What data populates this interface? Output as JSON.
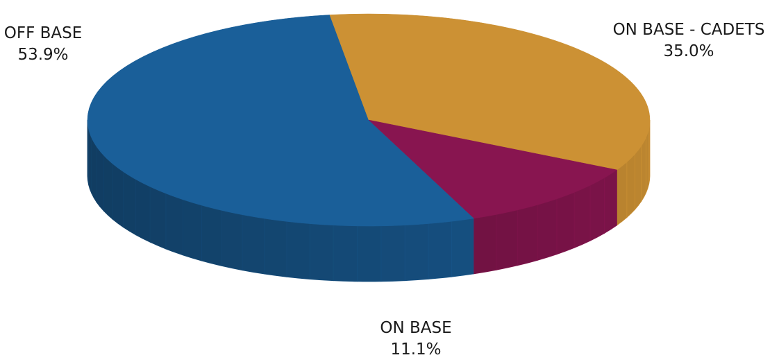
{
  "chart_data": {
    "type": "pie",
    "style": "3d",
    "slices": [
      {
        "label": "OFF BASE",
        "value": 53.9,
        "display": "53.9%",
        "color": "#1a5f99"
      },
      {
        "label": "ON BASE - CADETS",
        "value": 35.0,
        "display": "35.0%",
        "color": "#cc9134"
      },
      {
        "label": "ON BASE",
        "value": 11.1,
        "display": "11.1%",
        "color": "#881550"
      }
    ],
    "legend": "none"
  }
}
